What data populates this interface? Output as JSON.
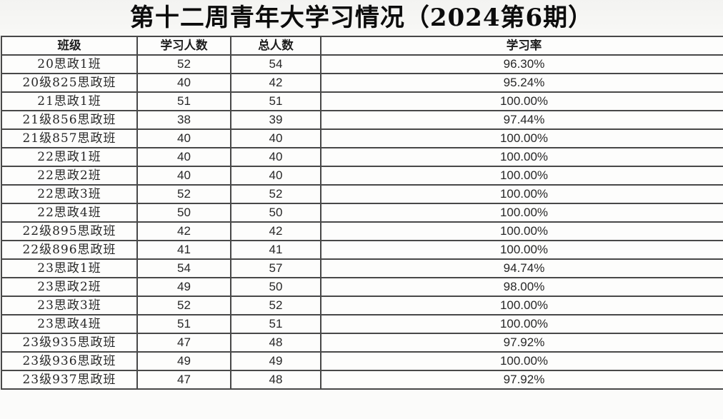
{
  "title": "第十二周青年大学习情况（2024第6期）",
  "table": {
    "columns": [
      "班级",
      "学习人数",
      "总人数",
      "学习率"
    ],
    "column_keys": [
      "class",
      "learners",
      "total",
      "rate"
    ],
    "rows": [
      [
        "20思政1班",
        "52",
        "54",
        "96.30%"
      ],
      [
        "20级825思政班",
        "40",
        "42",
        "95.24%"
      ],
      [
        "21思政1班",
        "51",
        "51",
        "100.00%"
      ],
      [
        "21级856思政班",
        "38",
        "39",
        "97.44%"
      ],
      [
        "21级857思政班",
        "40",
        "40",
        "100.00%"
      ],
      [
        "22思政1班",
        "40",
        "40",
        "100.00%"
      ],
      [
        "22思政2班",
        "40",
        "40",
        "100.00%"
      ],
      [
        "22思政3班",
        "52",
        "52",
        "100.00%"
      ],
      [
        "22思政4班",
        "50",
        "50",
        "100.00%"
      ],
      [
        "22级895思政班",
        "42",
        "42",
        "100.00%"
      ],
      [
        "22级896思政班",
        "41",
        "41",
        "100.00%"
      ],
      [
        "23思政1班",
        "54",
        "57",
        "94.74%"
      ],
      [
        "23思政2班",
        "49",
        "50",
        "98.00%"
      ],
      [
        "23思政3班",
        "52",
        "52",
        "100.00%"
      ],
      [
        "23思政4班",
        "51",
        "51",
        "100.00%"
      ],
      [
        "23级935思政班",
        "47",
        "48",
        "97.92%"
      ],
      [
        "23级936思政班",
        "49",
        "49",
        "100.00%"
      ],
      [
        "23级937思政班",
        "47",
        "48",
        "97.92%"
      ]
    ]
  },
  "colors": {
    "border": "#484848",
    "background": "#f6f6f4",
    "text": "#272727"
  }
}
